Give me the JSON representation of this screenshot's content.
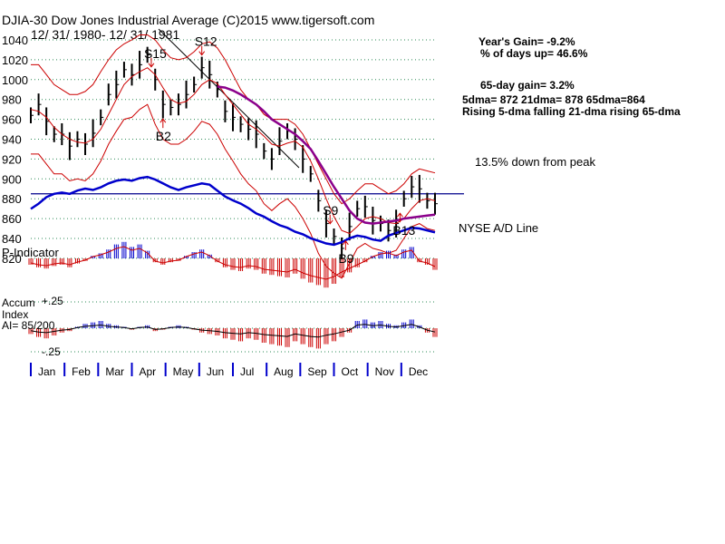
{
  "chart_data": {
    "type": "line",
    "title": "DJIA-30  Dow Jones Industrial Average   (C)2015 www.tigersoft.com",
    "date_range": "12/ 31/ 1980- 12/ 31/ 1981",
    "ylim": [
      810,
      1045
    ],
    "y_ticks": [
      1040,
      1020,
      1000,
      980,
      960,
      940,
      920,
      900,
      880,
      860,
      840,
      820
    ],
    "months": [
      "Jan",
      "Feb",
      "Mar",
      "Apr",
      "May",
      "Jun",
      "Jul",
      "Aug",
      "Sep",
      "Oct",
      "Nov",
      "Dec"
    ],
    "stats": {
      "years_gain": "Year's Gain= -9.2%",
      "pct_days_up": "% of days up= 46.6%",
      "gain_65day": "65-day gain= 3.2%",
      "dma_values": "5dma= 872 21dma= 878 65dma=864",
      "dma_trends": "Rising 5-dma falling 21-dma rising 65-dma"
    },
    "peak_line": {
      "value": 885,
      "label": "13.5% down from peak"
    },
    "signals": [
      {
        "label": "S15",
        "type": "sell",
        "week": 15.5
      },
      {
        "label": "S12",
        "type": "sell",
        "week": 22
      },
      {
        "label": "B2",
        "type": "buy",
        "week": 17
      },
      {
        "label": "S9",
        "type": "sell",
        "week": 38.5
      },
      {
        "label": "B9",
        "type": "buy",
        "week": 40.5
      },
      {
        "label": "B13",
        "type": "buy",
        "week": 47.5
      }
    ],
    "series": [
      {
        "name": "DJIA weekly close",
        "color": "#000000",
        "values": [
          964,
          975,
          958,
          945,
          945,
          933,
          940,
          935,
          946,
          962,
          985,
          995,
          1010,
          1005,
          1015,
          1025,
          1000,
          975,
          972,
          975,
          985,
          995,
          1012,
          1005,
          990,
          968,
          962,
          955,
          950,
          945,
          928,
          920,
          938,
          948,
          940,
          920,
          905,
          878,
          855,
          842,
          830,
          852,
          870,
          872,
          858,
          855,
          848,
          855,
          880,
          892,
          890,
          878,
          875
        ]
      },
      {
        "name": "Upper band",
        "color": "#cc0000",
        "values": [
          1015,
          1015,
          1005,
          995,
          990,
          985,
          985,
          988,
          995,
          1008,
          1020,
          1030,
          1036,
          1040,
          1045,
          1045,
          1040,
          1030,
          1022,
          1020,
          1022,
          1028,
          1036,
          1038,
          1032,
          1020,
          1005,
          990,
          980,
          975,
          965,
          960,
          960,
          960,
          955,
          945,
          930,
          915,
          900,
          885,
          875,
          880,
          888,
          895,
          895,
          890,
          885,
          888,
          895,
          905,
          910,
          908,
          906
        ]
      },
      {
        "name": "Lower band",
        "color": "#cc0000",
        "values": [
          925,
          925,
          915,
          905,
          905,
          898,
          900,
          898,
          905,
          918,
          935,
          948,
          960,
          962,
          970,
          975,
          955,
          940,
          935,
          935,
          940,
          948,
          958,
          955,
          945,
          930,
          918,
          905,
          895,
          888,
          875,
          868,
          875,
          880,
          872,
          860,
          845,
          825,
          812,
          805,
          800,
          815,
          830,
          835,
          830,
          828,
          825,
          828,
          840,
          852,
          855,
          850,
          848
        ]
      },
      {
        "name": "21-dma",
        "color": "#cc0000",
        "values": [
          970,
          968,
          962,
          952,
          945,
          940,
          937,
          936,
          940,
          950,
          965,
          980,
          995,
          1003,
          1008,
          1012,
          1005,
          992,
          980,
          976,
          978,
          985,
          995,
          1000,
          996,
          985,
          975,
          965,
          955,
          950,
          943,
          935,
          933,
          936,
          938,
          932,
          918,
          900,
          880,
          862,
          848,
          845,
          852,
          860,
          862,
          860,
          856,
          855,
          860,
          870,
          878,
          880,
          878
        ]
      },
      {
        "name": "65-dma",
        "color": "#8b008b",
        "values": [
          null,
          null,
          null,
          null,
          null,
          null,
          null,
          null,
          null,
          null,
          null,
          null,
          null,
          null,
          null,
          null,
          null,
          null,
          null,
          null,
          null,
          null,
          null,
          null,
          993,
          992,
          989,
          985,
          980,
          975,
          968,
          960,
          955,
          950,
          945,
          938,
          930,
          918,
          905,
          892,
          880,
          868,
          860,
          856,
          855,
          856,
          857,
          858,
          860,
          861,
          862,
          863,
          864
        ]
      }
    ],
    "ad_line": {
      "name": "NYSE A/D Line",
      "color": "#0000cc",
      "values": [
        63,
        55,
        45,
        40,
        38,
        40,
        35,
        32,
        34,
        30,
        24,
        20,
        18,
        20,
        16,
        14,
        18,
        24,
        30,
        34,
        30,
        27,
        24,
        26,
        35,
        44,
        50,
        55,
        62,
        70,
        75,
        82,
        88,
        92,
        98,
        102,
        108,
        112,
        116,
        118,
        114,
        108,
        104,
        106,
        110,
        112,
        104,
        100,
        96,
        92,
        93,
        96,
        99
      ]
    },
    "p_indicator": {
      "label": "P-Indicator",
      "values": [
        -10,
        -14,
        -16,
        -12,
        -10,
        -14,
        -8,
        -4,
        4,
        8,
        14,
        22,
        26,
        18,
        22,
        12,
        -6,
        -10,
        -6,
        -4,
        4,
        10,
        14,
        6,
        -6,
        -14,
        -18,
        -20,
        -16,
        -18,
        -24,
        -26,
        -28,
        -30,
        -24,
        -32,
        -38,
        -42,
        -46,
        -40,
        -30,
        -22,
        -14,
        -6,
        4,
        10,
        12,
        6,
        14,
        18,
        -6,
        -10,
        -18
      ]
    },
    "accum_index": {
      "label_line1": "Accum",
      "tick_top": "+.25",
      "label_line2": "Index",
      "label_ai": "AI= 85/200",
      "tick_bottom": "-.25",
      "values": [
        -8,
        -12,
        -14,
        -10,
        -6,
        -4,
        2,
        6,
        8,
        10,
        6,
        4,
        2,
        -2,
        2,
        4,
        -4,
        -2,
        2,
        4,
        2,
        -2,
        -6,
        -8,
        -10,
        -14,
        -16,
        -18,
        -14,
        -16,
        -20,
        -22,
        -24,
        -26,
        -18,
        -22,
        -26,
        -28,
        -22,
        -18,
        -12,
        -6,
        10,
        12,
        8,
        10,
        6,
        4,
        8,
        12,
        4,
        -6,
        -12
      ]
    }
  }
}
